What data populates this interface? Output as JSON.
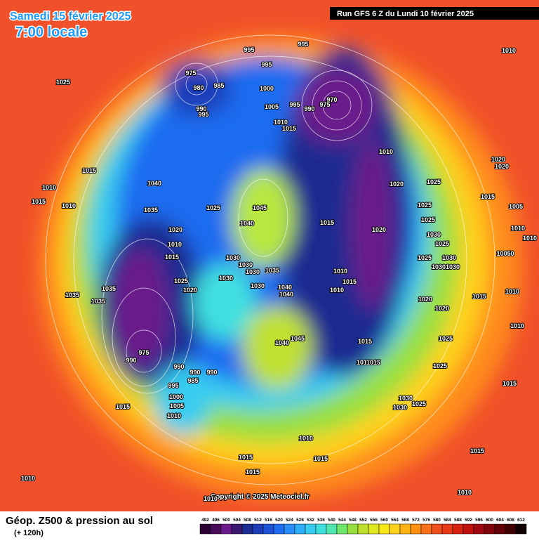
{
  "header": {
    "date": "Samedi 15 février 2025",
    "time": "7:00 locale",
    "run": "Run GFS 6 Z du Lundi 10 février 2025"
  },
  "footer": {
    "title": "Géop. Z500 & pression au sol",
    "lead": "(+ 120h)",
    "copyright": "Copyright © 2025 Meteociel.fr"
  },
  "legend": {
    "ticks": [
      492,
      496,
      500,
      504,
      508,
      512,
      516,
      520,
      524,
      528,
      532,
      536,
      540,
      544,
      548,
      552,
      556,
      560,
      564,
      568,
      572,
      576,
      580,
      584,
      588,
      592,
      596,
      600,
      604,
      608,
      612
    ],
    "colors": [
      "#2b0033",
      "#4a0a5a",
      "#6a1a8a",
      "#3a1870",
      "#1c2c90",
      "#1c3cb8",
      "#1e52d8",
      "#1e6cf0",
      "#2a8cf8",
      "#30aef8",
      "#38ccf0",
      "#40e0e0",
      "#50e8b0",
      "#70e870",
      "#98e040",
      "#c0e030",
      "#e0e820",
      "#f8e818",
      "#ffd21a",
      "#ffb414",
      "#ff9010",
      "#f87018",
      "#f05020",
      "#e83818",
      "#d82010",
      "#c01010",
      "#a00810",
      "#800408",
      "#600004",
      "#400000",
      "#100000"
    ]
  },
  "pressure_labels": [
    1025,
    995,
    995,
    995,
    975,
    980,
    985,
    990,
    995,
    970,
    975,
    990,
    1000,
    1005,
    995,
    1010,
    1015,
    1010,
    1010,
    1020,
    1025,
    1020,
    1025,
    1025,
    1030,
    1025,
    1030,
    1025,
    1030,
    1030,
    1020,
    1020,
    1015,
    1005,
    1010,
    1010,
    10050,
    1010,
    1010,
    1015,
    1015,
    1015,
    1010,
    1015,
    1010,
    1040,
    1035,
    1025,
    1045,
    1040,
    1020,
    1010,
    1015,
    1015,
    1030,
    1030,
    1030,
    1035,
    1030,
    1025,
    1020,
    1035,
    1035,
    1035,
    1010,
    1015,
    1010,
    1030,
    1040,
    1040,
    1020,
    1020,
    1045,
    1040,
    1015,
    1010,
    1015,
    1025,
    1025,
    975,
    990,
    990,
    990,
    990,
    985,
    995,
    1000,
    1005,
    1010,
    1015,
    1030,
    1030,
    1025,
    1010,
    1015,
    1015,
    1015,
    1015,
    1010,
    1010,
    1010
  ]
}
